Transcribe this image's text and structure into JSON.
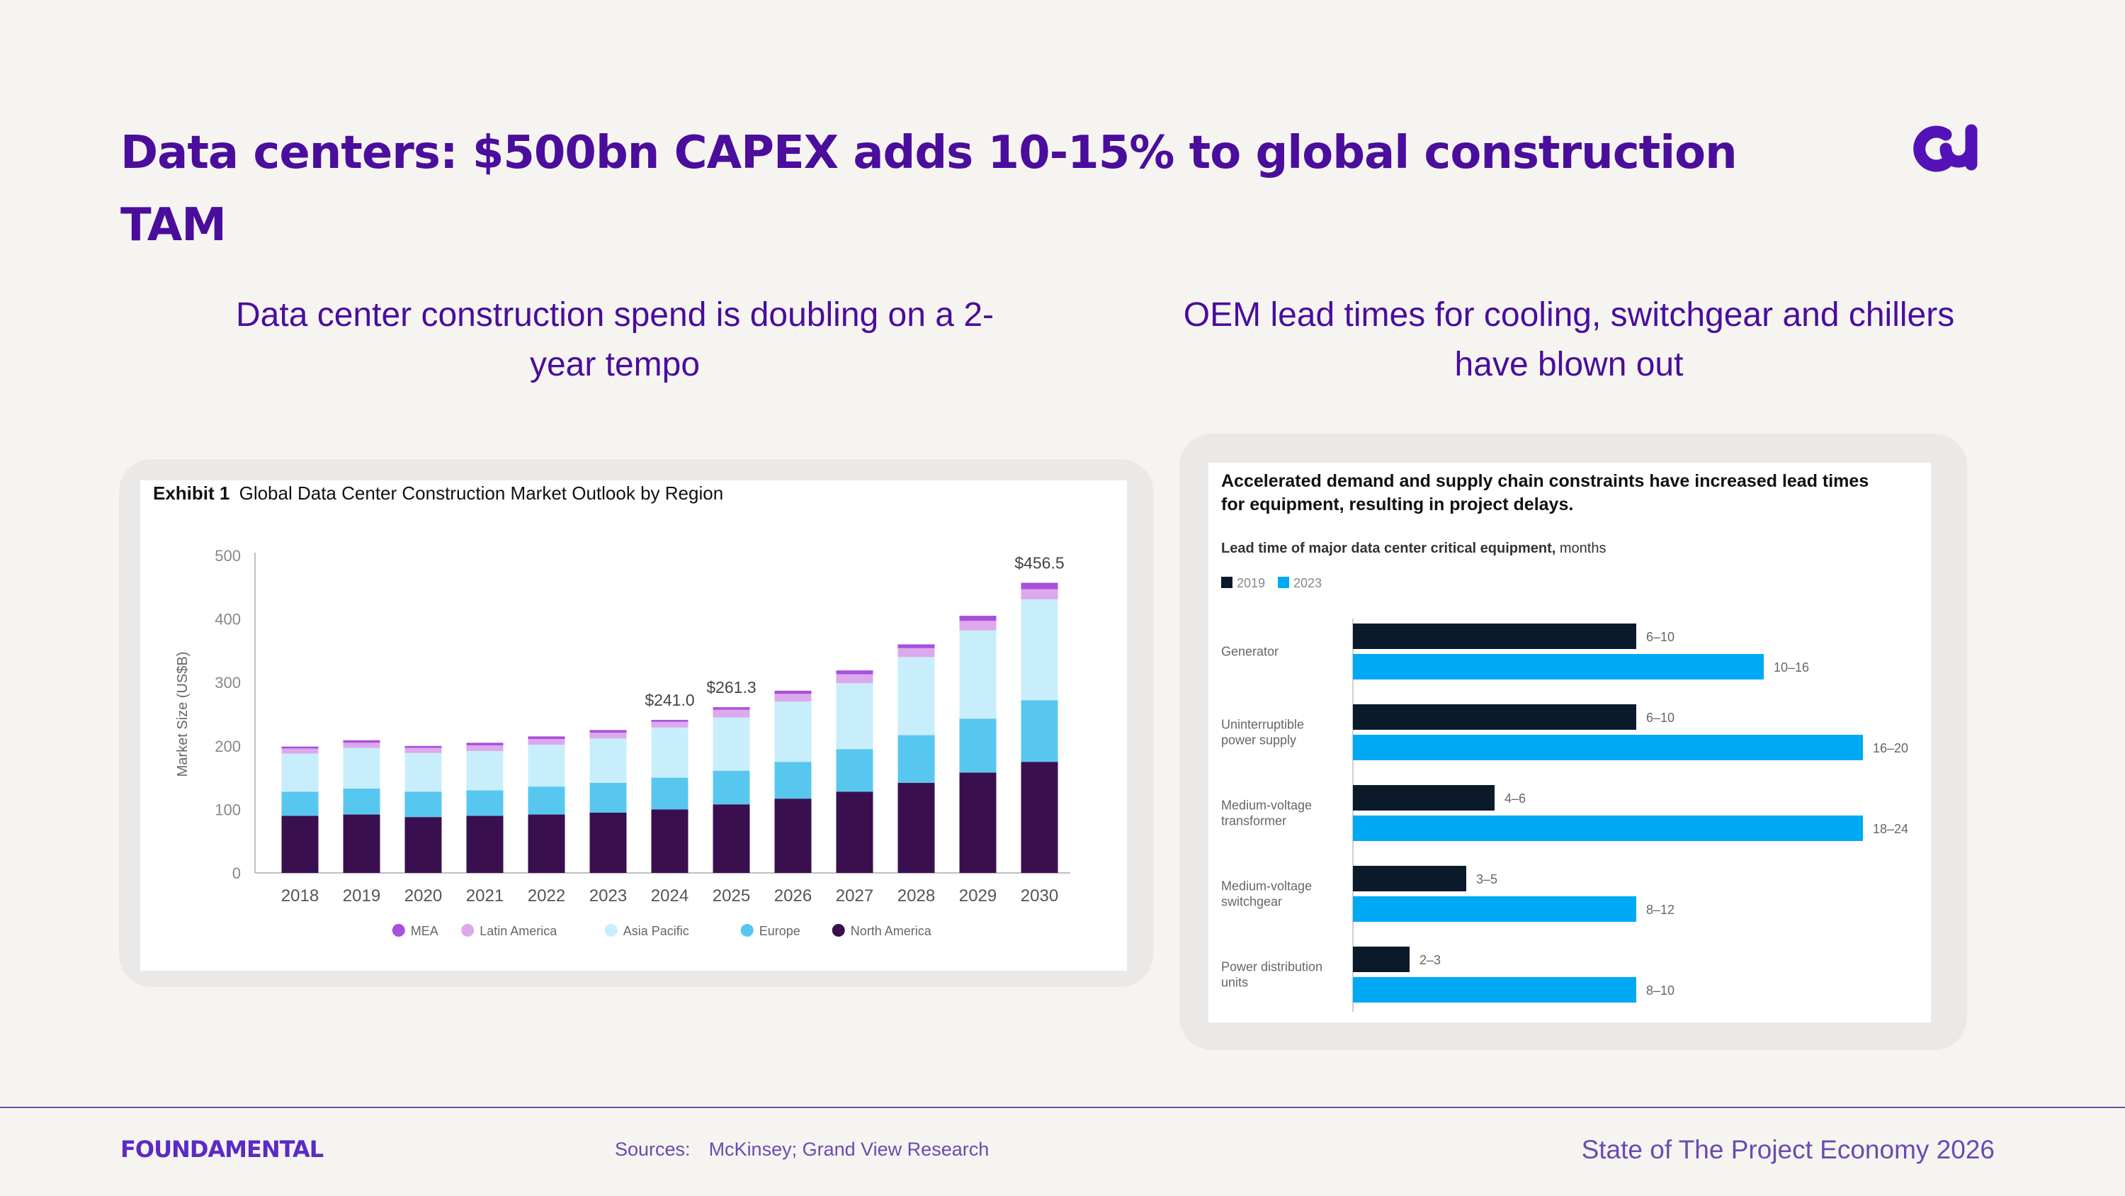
{
  "slide": {
    "title": "Data centers: $500bn CAPEX adds 10-15% to global construction TAM",
    "subtitle_left": "Data center construction spend is doubling on a 2-year tempo",
    "subtitle_right": "OEM lead times for cooling, switchgear and chillers have blown out",
    "logo_icon": "foundamental-cu-logo-icon",
    "accent_color": "#4a0d9c"
  },
  "footer": {
    "brand": "FOUNDAMENTAL",
    "sources_label": "Sources:",
    "sources_text": "McKinsey; Grand View Research",
    "report_title": "State of The Project Economy 2026"
  },
  "chart_data": [
    {
      "type": "bar",
      "stacked": true,
      "title_prefix": "Exhibit 1",
      "title": "Global Data Center Construction Market Outlook by Region",
      "xlabel": "",
      "ylabel": "Market Size (US$B)",
      "ylim": [
        0,
        500
      ],
      "yticks": [
        0,
        100,
        200,
        300,
        400,
        500
      ],
      "grid": false,
      "legend_position": "bottom",
      "categories": [
        "2018",
        "2019",
        "2020",
        "2021",
        "2022",
        "2023",
        "2024",
        "2025",
        "2026",
        "2027",
        "2028",
        "2029",
        "2030"
      ],
      "series": [
        {
          "name": "North America",
          "color": "#3a0f4f",
          "values": [
            90,
            92,
            88,
            90,
            92,
            95,
            100,
            108,
            117,
            128,
            142,
            158,
            175
          ]
        },
        {
          "name": "Europe",
          "color": "#58c7f0",
          "values": [
            38,
            41,
            40,
            40,
            44,
            47,
            50,
            53,
            58,
            67,
            75,
            85,
            97
          ]
        },
        {
          "name": "Asia Pacific",
          "color": "#c8eefc",
          "values": [
            60,
            64,
            61,
            62,
            66,
            70,
            79,
            84,
            95,
            104,
            123,
            139,
            159
          ]
        },
        {
          "name": "Latin America",
          "color": "#dca9ec",
          "values": [
            8,
            8,
            8,
            9,
            9,
            9,
            9,
            12,
            12,
            14,
            14,
            15,
            16
          ]
        },
        {
          "name": "MEA",
          "color": "#a84fdc",
          "values": [
            3,
            4,
            3,
            4,
            4,
            4,
            3,
            4,
            5,
            6,
            6,
            8,
            10
          ]
        }
      ],
      "annotations": [
        {
          "category": "2024",
          "text": "$241.0"
        },
        {
          "category": "2025",
          "text": "$261.3"
        },
        {
          "category": "2030",
          "text": "$456.5"
        }
      ]
    },
    {
      "type": "bar",
      "orientation": "horizontal",
      "title": "Accelerated demand and supply chain constraints have increased lead times for equipment, resulting in project delays.",
      "subtitle_bold": "Lead time of major data center critical equipment,",
      "subtitle_unit": "months",
      "legend_position": "top-left",
      "grid": false,
      "categories": [
        "Generator",
        "Uninterruptible power supply",
        "Medium-voltage transformer",
        "Medium-voltage switchgear",
        "Power distribution units"
      ],
      "category_lines": [
        [
          "Generator"
        ],
        [
          "Uninterruptible",
          "power supply"
        ],
        [
          "Medium-voltage",
          "transformer"
        ],
        [
          "Medium-voltage",
          "switchgear"
        ],
        [
          "Power distribution",
          "units"
        ]
      ],
      "series": [
        {
          "name": "2019",
          "color": "#0b1a2a",
          "values": [
            10,
            10,
            5,
            4,
            2
          ],
          "labels": [
            "6–10",
            "6–10",
            "4–6",
            "3–5",
            "2–3"
          ]
        },
        {
          "name": "2023",
          "color": "#00a9f4",
          "values": [
            14.5,
            18,
            18,
            10,
            10
          ],
          "labels": [
            "10–16",
            "16–20",
            "18–24",
            "8–12",
            "8–10"
          ]
        }
      ]
    }
  ]
}
